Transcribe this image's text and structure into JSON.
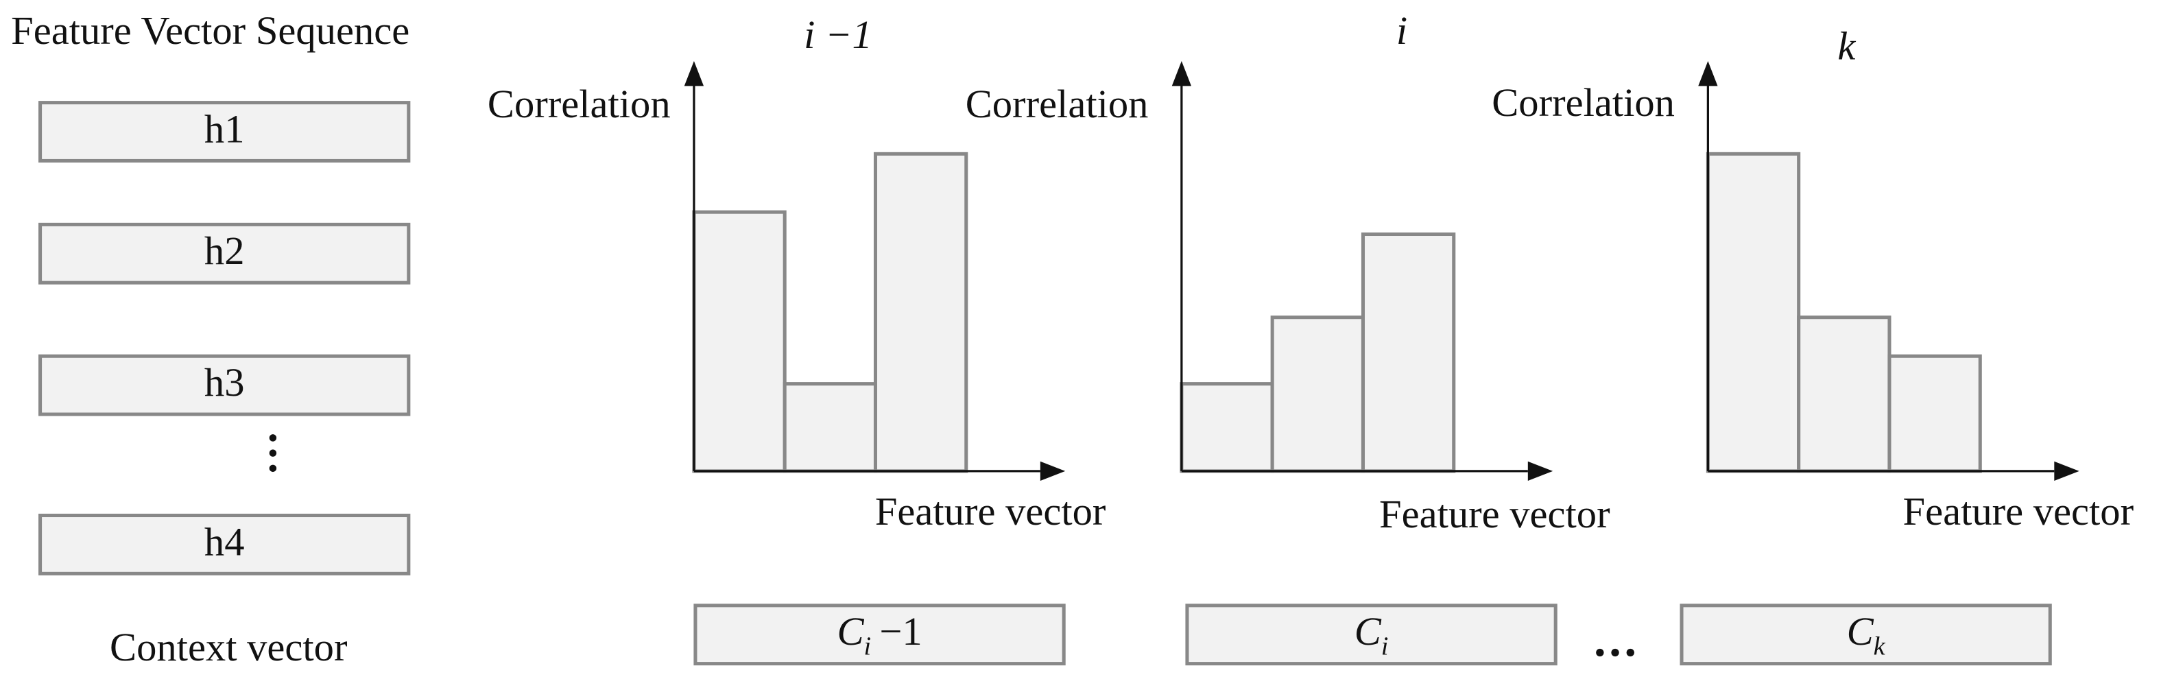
{
  "left": {
    "title": "Feature Vector Sequence",
    "boxes": [
      "h1",
      "h2",
      "h3",
      "h4"
    ],
    "caption": "Context vector"
  },
  "panels": [
    {
      "title": "i −1",
      "y_label": "Correlation",
      "x_label": "Feature vector",
      "context": {
        "base": "C",
        "sub": "i",
        "suffix": "−1"
      }
    },
    {
      "title": "i",
      "y_label": "Correlation",
      "x_label": "Feature vector",
      "context": {
        "base": "C",
        "sub": "i"
      }
    },
    {
      "title": "k",
      "y_label": "Correlation",
      "x_label": "Feature vector",
      "context": {
        "base": "C",
        "sub": "k"
      }
    }
  ]
}
